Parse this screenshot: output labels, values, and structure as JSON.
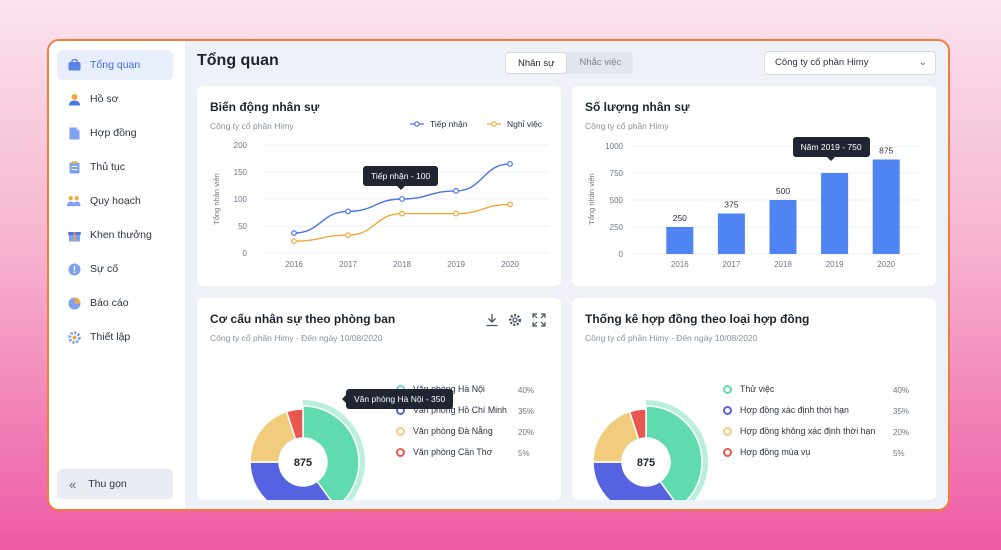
{
  "sidebar": {
    "items": [
      {
        "label": "Tổng quan",
        "icon": "dashboard-icon",
        "active": true
      },
      {
        "label": "Hồ sơ",
        "icon": "profile-icon"
      },
      {
        "label": "Hợp đồng",
        "icon": "contract-icon"
      },
      {
        "label": "Thủ tục",
        "icon": "procedure-icon"
      },
      {
        "label": "Quy hoạch",
        "icon": "planning-icon"
      },
      {
        "label": "Khen thưởng",
        "icon": "reward-icon"
      },
      {
        "label": "Sự cố",
        "icon": "incident-icon"
      },
      {
        "label": "Báo cáo",
        "icon": "report-icon"
      },
      {
        "label": "Thiết lập",
        "icon": "settings-icon"
      }
    ],
    "collapse_label": "Thu gọn"
  },
  "header": {
    "title": "Tổng quan",
    "tabs": [
      {
        "label": "Nhân sự",
        "active": true
      },
      {
        "label": "Nhắc việc",
        "active": false
      }
    ],
    "company_select": "Công ty cổ phần Himy"
  },
  "cards": {
    "turnover": {
      "title": "Biến động nhân sự",
      "subtitle": "Công ty cổ phần Himy",
      "tooltip": "Tiếp nhận - 100"
    },
    "headcount": {
      "title": "Số lượng nhân sự",
      "subtitle": "Công ty cổ phần Himy",
      "tooltip": "Năm 2019 - 750"
    },
    "department": {
      "title": "Cơ cấu nhân sự theo phòng ban",
      "subtitle": "Công ty cổ phần Himy - Đến ngày 10/08/2020",
      "tooltip": "Văn phòng Hà Nội - 350"
    },
    "contracts": {
      "title": "Thống kê hợp đồng theo loại hợp đồng",
      "subtitle": "Công ty cổ phần Himy - Đến ngày 10/08/2020"
    }
  },
  "colors": {
    "blue": "#4a74e8",
    "orange": "#f0a73a",
    "green": "#5fdbaf",
    "yellow": "#f2cc7d",
    "red": "#e8584f",
    "bar": "#4f84f2"
  },
  "chart_data": [
    {
      "type": "line",
      "title": "Biến động nhân sự",
      "ylabel": "Tổng nhân viên",
      "x": [
        "2016",
        "2017",
        "2018",
        "2019",
        "2020"
      ],
      "yticks": [
        "0",
        "50",
        "100",
        "150",
        "200"
      ],
      "ylim": [
        0,
        200
      ],
      "series": [
        {
          "name": "Tiếp nhận",
          "values": [
            37,
            77,
            100,
            115,
            165
          ]
        },
        {
          "name": "Nghỉ việc",
          "values": [
            22,
            33,
            73,
            73,
            90
          ]
        }
      ],
      "legend": "top-right"
    },
    {
      "type": "bar",
      "title": "Số lượng nhân sự",
      "ylabel": "Tổng nhân viên",
      "categories": [
        "2016",
        "2017",
        "2018",
        "2019",
        "2020"
      ],
      "values": [
        250,
        375,
        500,
        750,
        875
      ],
      "labels": [
        "250",
        "375",
        "500",
        "",
        "875"
      ],
      "yticks": [
        "0",
        "250",
        "500",
        "750",
        "1000"
      ],
      "ylim": [
        0,
        1000
      ]
    },
    {
      "type": "pie",
      "title": "Cơ cấu nhân sự theo phòng ban",
      "center_label": "875",
      "slices": [
        {
          "label": "Văn phòng Hà Nội",
          "value": 40,
          "pct": "40%"
        },
        {
          "label": "Văn phòng Hồ Chí Minh",
          "value": 35,
          "pct": "35%"
        },
        {
          "label": "Văn phòng Đà Nẵng",
          "value": 20,
          "pct": "20%"
        },
        {
          "label": "Văn phòng Cần Thơ",
          "value": 5,
          "pct": "5%"
        }
      ]
    },
    {
      "type": "pie",
      "title": "Thống kê hợp đồng theo loại hợp đồng",
      "center_label": "875",
      "slices": [
        {
          "label": "Thử việc",
          "value": 40,
          "pct": "40%"
        },
        {
          "label": "Hợp đồng xác định thời hạn",
          "value": 35,
          "pct": "35%"
        },
        {
          "label": "Hợp đồng không xác định thời hạn",
          "value": 20,
          "pct": "20%"
        },
        {
          "label": "Hợp đồng mùa vụ",
          "value": 5,
          "pct": "5%"
        }
      ]
    }
  ]
}
